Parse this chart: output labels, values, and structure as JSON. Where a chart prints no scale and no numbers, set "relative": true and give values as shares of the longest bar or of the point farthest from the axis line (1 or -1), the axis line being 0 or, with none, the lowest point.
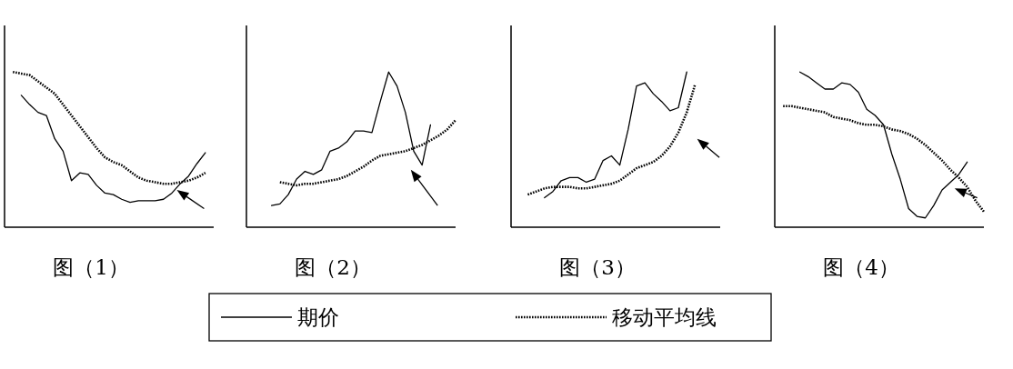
{
  "chart_data": [
    {
      "type": "line",
      "title": "图（1）",
      "relative": true,
      "legend": "bottom",
      "categories": [
        null,
        null,
        null,
        null,
        null,
        null,
        null,
        null,
        null,
        null,
        null,
        null,
        null,
        null,
        null,
        null,
        null,
        null,
        null,
        null,
        null,
        null,
        null,
        null,
        null,
        null
      ],
      "series": [
        {
          "name": "期价",
          "color": "#000000",
          "line_style": "solid",
          "values": [
            null,
            null,
            0.85,
            0.79,
            0.74,
            0.72,
            0.57,
            0.49,
            0.3,
            0.35,
            0.34,
            0.27,
            0.22,
            0.21,
            0.18,
            0.16,
            0.17,
            0.17,
            0.17,
            0.18,
            0.22,
            0.28,
            0.33,
            0.41,
            0.48,
            null
          ]
        },
        {
          "name": "移动平均线",
          "color": "#000000",
          "line_style": "dotted",
          "values": [
            null,
            1.0,
            0.99,
            0.98,
            0.94,
            0.9,
            0.86,
            0.79,
            0.72,
            0.65,
            0.58,
            0.51,
            0.45,
            0.42,
            0.4,
            0.36,
            0.32,
            0.3,
            0.29,
            0.28,
            0.28,
            0.29,
            0.3,
            0.32,
            0.35,
            null
          ]
        }
      ]
    },
    {
      "type": "line",
      "title": "图（2）",
      "relative": true,
      "categories": [
        null,
        null,
        null,
        null,
        null,
        null,
        null,
        null,
        null,
        null,
        null,
        null,
        null,
        null,
        null,
        null,
        null,
        null,
        null,
        null,
        null,
        null,
        null,
        null,
        null,
        null
      ],
      "series": [
        {
          "color": "#000000",
          "line_style": "solid",
          "values": [
            null,
            null,
            null,
            0.14,
            0.15,
            0.21,
            0.31,
            0.36,
            0.34,
            0.37,
            0.49,
            0.51,
            0.55,
            0.62,
            0.62,
            0.61,
            0.81,
            1.0,
            0.91,
            0.74,
            0.49,
            0.4,
            0.66,
            null,
            null,
            null
          ]
        },
        {
          "color": "#000000",
          "line_style": "dotted",
          "values": [
            null,
            null,
            null,
            null,
            0.29,
            0.28,
            0.27,
            0.28,
            0.28,
            0.29,
            0.3,
            0.31,
            0.33,
            0.36,
            0.39,
            0.43,
            0.46,
            0.47,
            0.48,
            0.49,
            0.51,
            0.53,
            0.56,
            0.59,
            0.63,
            0.69
          ]
        }
      ]
    },
    {
      "type": "line",
      "title": "图（3）",
      "relative": true,
      "categories": [
        null,
        null,
        null,
        null,
        null,
        null,
        null,
        null,
        null,
        null,
        null,
        null,
        null,
        null,
        null,
        null,
        null,
        null,
        null,
        null,
        null,
        null,
        null,
        null,
        null,
        null
      ],
      "series": [
        {
          "color": "#000000",
          "line_style": "solid",
          "values": [
            null,
            null,
            null,
            null,
            0.19,
            0.23,
            0.3,
            0.32,
            0.32,
            0.29,
            0.31,
            0.43,
            0.46,
            0.4,
            0.63,
            0.91,
            0.93,
            0.86,
            0.81,
            0.75,
            0.77,
            1.0,
            null,
            null,
            null,
            null
          ]
        },
        {
          "color": "#000000",
          "line_style": "dotted",
          "values": [
            null,
            null,
            0.21,
            0.23,
            0.25,
            0.26,
            0.26,
            0.26,
            0.25,
            0.25,
            0.26,
            0.27,
            0.28,
            0.3,
            0.34,
            0.38,
            0.4,
            0.42,
            0.46,
            0.52,
            0.61,
            0.74,
            0.92,
            null,
            null,
            null
          ]
        }
      ]
    },
    {
      "type": "line",
      "title": "图（4）",
      "relative": true,
      "categories": [
        null,
        null,
        null,
        null,
        null,
        null,
        null,
        null,
        null,
        null,
        null,
        null,
        null,
        null,
        null,
        null,
        null,
        null,
        null,
        null,
        null,
        null,
        null,
        null,
        null,
        null
      ],
      "series": [
        {
          "color": "#000000",
          "line_style": "solid",
          "values": [
            null,
            null,
            null,
            1.0,
            0.97,
            0.93,
            0.89,
            0.89,
            0.93,
            0.92,
            0.87,
            0.76,
            0.72,
            0.66,
            0.47,
            0.31,
            0.12,
            0.07,
            0.06,
            0.14,
            0.24,
            0.29,
            0.34,
            0.42,
            null,
            null
          ]
        },
        {
          "color": "#000000",
          "line_style": "dotted",
          "values": [
            null,
            0.78,
            0.78,
            0.77,
            0.76,
            0.75,
            0.74,
            0.71,
            0.7,
            0.69,
            0.67,
            0.66,
            0.66,
            0.65,
            0.63,
            0.62,
            0.6,
            0.57,
            0.53,
            0.48,
            0.43,
            0.37,
            0.32,
            0.26,
            0.17,
            0.1
          ]
        }
      ]
    }
  ]
}
